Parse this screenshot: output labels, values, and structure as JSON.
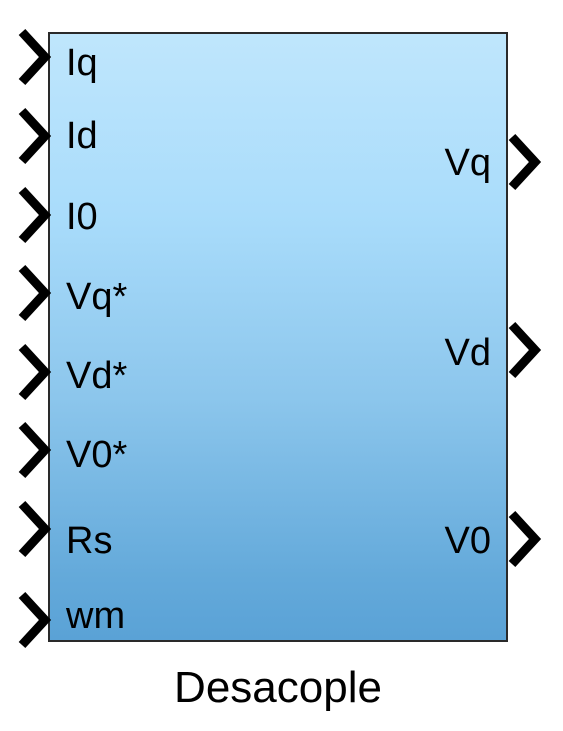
{
  "block": {
    "name": "Desacople",
    "fill_top": "#bfe6fc",
    "fill_bottom": "#5aa2d6",
    "border_color": "#2a2a2a"
  },
  "inputs": [
    {
      "label": "Iq"
    },
    {
      "label": "Id"
    },
    {
      "label": "I0"
    },
    {
      "label": "Vq*"
    },
    {
      "label": "Vd*"
    },
    {
      "label": "V0*"
    },
    {
      "label": "Rs"
    },
    {
      "label": "wm"
    }
  ],
  "outputs": [
    {
      "label": "Vq"
    },
    {
      "label": "Vd"
    },
    {
      "label": "V0"
    }
  ]
}
